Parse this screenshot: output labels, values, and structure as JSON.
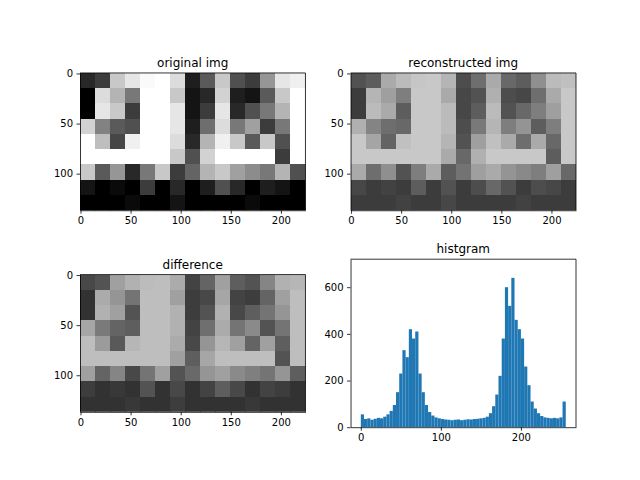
{
  "chart_data": [
    {
      "type": "image",
      "title": "original img",
      "xlim": [
        -0.5,
        224.5
      ],
      "ylim": [
        136.5,
        -0.5
      ],
      "xticks": [
        0,
        50,
        100,
        150,
        200
      ],
      "yticks": [
        0,
        50,
        100
      ],
      "cells": [
        [
          40,
          60,
          200,
          230,
          250,
          255,
          220,
          30,
          90,
          200,
          80,
          60,
          150,
          230,
          240
        ],
        [
          0,
          220,
          180,
          120,
          255,
          255,
          200,
          20,
          40,
          210,
          30,
          20,
          90,
          200,
          255
        ],
        [
          0,
          230,
          200,
          60,
          255,
          255,
          230,
          20,
          60,
          230,
          40,
          80,
          120,
          180,
          255
        ],
        [
          210,
          130,
          90,
          80,
          255,
          255,
          230,
          30,
          110,
          220,
          120,
          160,
          60,
          120,
          255
        ],
        [
          255,
          190,
          70,
          240,
          255,
          255,
          220,
          40,
          180,
          240,
          200,
          90,
          200,
          80,
          255
        ],
        [
          255,
          255,
          255,
          255,
          255,
          255,
          200,
          80,
          210,
          255,
          255,
          255,
          255,
          60,
          255
        ],
        [
          200,
          90,
          150,
          40,
          120,
          200,
          60,
          100,
          180,
          200,
          160,
          140,
          120,
          180,
          80
        ],
        [
          20,
          0,
          10,
          0,
          60,
          0,
          40,
          0,
          30,
          80,
          40,
          0,
          30,
          20,
          0
        ],
        [
          0,
          0,
          0,
          10,
          0,
          0,
          20,
          0,
          0,
          0,
          0,
          10,
          0,
          0,
          0
        ]
      ]
    },
    {
      "type": "image",
      "title": "reconstructed img",
      "xlim": [
        -0.5,
        224.5
      ],
      "ylim": [
        136.5,
        -0.5
      ],
      "xticks": [
        0,
        50,
        100,
        150,
        200
      ],
      "yticks": [
        0,
        50,
        100
      ],
      "cells": [
        [
          82,
          93,
          170,
          187,
          198,
          200,
          181,
          77,
          110,
          170,
          104,
          93,
          143,
          187,
          192
        ],
        [
          60,
          181,
          159,
          126,
          200,
          200,
          170,
          71,
          82,
          176,
          77,
          71,
          110,
          170,
          200
        ],
        [
          60,
          187,
          170,
          93,
          200,
          200,
          187,
          71,
          93,
          187,
          82,
          104,
          126,
          159,
          200
        ],
        [
          176,
          132,
          110,
          104,
          200,
          200,
          187,
          77,
          121,
          181,
          126,
          148,
          93,
          126,
          200
        ],
        [
          200,
          165,
          99,
          192,
          200,
          200,
          181,
          82,
          159,
          192,
          170,
          110,
          170,
          104,
          200
        ],
        [
          200,
          200,
          200,
          200,
          200,
          200,
          170,
          104,
          176,
          200,
          200,
          200,
          200,
          93,
          200
        ],
        [
          170,
          110,
          143,
          82,
          126,
          170,
          93,
          115,
          159,
          170,
          148,
          137,
          126,
          159,
          104
        ],
        [
          71,
          60,
          66,
          60,
          93,
          60,
          82,
          60,
          77,
          104,
          82,
          60,
          77,
          71,
          60
        ],
        [
          60,
          60,
          60,
          66,
          60,
          60,
          71,
          60,
          60,
          60,
          60,
          66,
          60,
          60,
          60
        ]
      ]
    },
    {
      "type": "image",
      "title": "difference",
      "xlim": [
        -0.5,
        224.5
      ],
      "ylim": [
        136.5,
        -0.5
      ],
      "xticks": [
        0,
        50,
        100,
        150,
        200
      ],
      "yticks": [
        0,
        50,
        100
      ],
      "cells": [
        [
          72,
          83,
          160,
          177,
          188,
          190,
          171,
          67,
          100,
          160,
          94,
          83,
          133,
          177,
          182
        ],
        [
          50,
          171,
          149,
          116,
          190,
          190,
          160,
          61,
          72,
          166,
          67,
          61,
          100,
          160,
          190
        ],
        [
          50,
          177,
          160,
          83,
          190,
          190,
          177,
          61,
          83,
          177,
          72,
          94,
          116,
          149,
          190
        ],
        [
          166,
          122,
          100,
          94,
          190,
          190,
          177,
          67,
          111,
          171,
          116,
          138,
          83,
          116,
          190
        ],
        [
          190,
          155,
          89,
          182,
          190,
          190,
          171,
          72,
          149,
          182,
          160,
          100,
          160,
          94,
          190
        ],
        [
          190,
          190,
          190,
          190,
          190,
          190,
          160,
          94,
          166,
          190,
          190,
          190,
          190,
          83,
          190
        ],
        [
          160,
          100,
          133,
          72,
          116,
          160,
          83,
          105,
          149,
          160,
          138,
          127,
          116,
          149,
          94
        ],
        [
          61,
          50,
          56,
          50,
          83,
          50,
          72,
          50,
          67,
          94,
          72,
          50,
          67,
          61,
          50
        ],
        [
          50,
          50,
          50,
          56,
          50,
          50,
          61,
          50,
          50,
          50,
          50,
          56,
          50,
          50,
          50
        ]
      ]
    },
    {
      "type": "histogram",
      "title": "histgram",
      "color": "#1f77b4",
      "xlim": [
        -12.8,
        268.8
      ],
      "ylim": [
        0,
        720
      ],
      "xticks": [
        0,
        100,
        200
      ],
      "yticks": [
        0,
        200,
        400,
        600
      ],
      "bins": [
        0,
        4,
        8,
        12,
        16,
        20,
        24,
        28,
        32,
        36,
        40,
        44,
        48,
        52,
        56,
        60,
        64,
        68,
        72,
        76,
        80,
        84,
        88,
        92,
        96,
        100,
        104,
        108,
        112,
        116,
        120,
        124,
        128,
        132,
        136,
        140,
        144,
        148,
        152,
        156,
        160,
        164,
        168,
        172,
        176,
        180,
        184,
        188,
        192,
        196,
        200,
        204,
        208,
        212,
        216,
        220,
        224,
        228,
        232,
        236,
        240,
        244,
        248,
        252,
        256
      ],
      "values": [
        55,
        35,
        38,
        32,
        36,
        40,
        38,
        45,
        55,
        70,
        95,
        150,
        230,
        330,
        300,
        420,
        380,
        410,
        230,
        150,
        95,
        65,
        50,
        42,
        38,
        35,
        33,
        32,
        30,
        32,
        33,
        30,
        32,
        34,
        33,
        35,
        36,
        38,
        40,
        45,
        60,
        90,
        140,
        220,
        380,
        600,
        520,
        640,
        460,
        420,
        380,
        260,
        180,
        110,
        80,
        60,
        48,
        42,
        40,
        38,
        40,
        38,
        42,
        110
      ]
    }
  ]
}
